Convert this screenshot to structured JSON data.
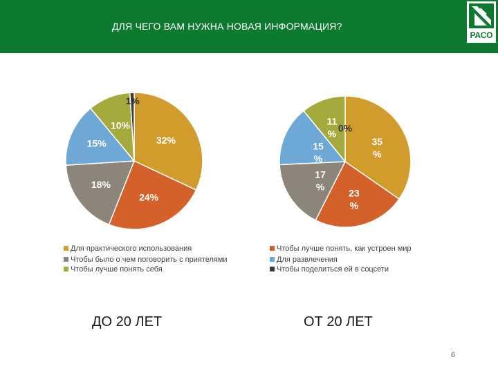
{
  "header": {
    "title": "ДЛЯ ЧЕГО ВАМ НУЖНА НОВАЯ ИНФОРМАЦИЯ?",
    "logo_text": "РАСО",
    "background_color": "#0e7a2f"
  },
  "chart_data": [
    {
      "type": "pie",
      "caption": "ДО 20 ЛЕТ",
      "categories": [
        "Для практического использования",
        "Чтобы лучше понять, как устроен мир",
        "Чтобы было о чем поговорить с приятелями",
        "Для развлечения",
        "Чтобы лучше понять себя",
        "Чтобы поделиться ей в соцсети"
      ],
      "values": [
        32,
        24,
        18,
        15,
        10,
        1
      ],
      "data_labels": [
        "32%",
        "24%",
        "18%",
        "15%",
        "10%",
        "1%"
      ],
      "colors": [
        "#d19c2c",
        "#d4612a",
        "#8c8579",
        "#6ea8d6",
        "#a4aa3b",
        "#3a3a3a"
      ]
    },
    {
      "type": "pie",
      "caption": "ОТ 20 ЛЕТ",
      "categories": [
        "Для практического использования",
        "Чтобы лучше понять, как устроен мир",
        "Чтобы было о чем поговорить с приятелями",
        "Для развлечения",
        "Чтобы лучше понять себя",
        "Чтобы поделиться ей в соцсети"
      ],
      "values": [
        35,
        23,
        17,
        15,
        11,
        0
      ],
      "data_labels": [
        "35 %",
        "23 %",
        "17 %",
        "15 %",
        "11 %",
        "0%"
      ],
      "colors": [
        "#d19c2c",
        "#d4612a",
        "#8c8579",
        "#6ea8d6",
        "#a4aa3b",
        "#3a3a3a"
      ]
    }
  ],
  "legend": {
    "items": [
      "Для практического использования",
      "Чтобы лучше понять, как устроен мир",
      "Чтобы было о чем поговорить с приятелями",
      "Для развлечения",
      "Чтобы лучше понять себя",
      "Чтобы поделиться ей в соцсети"
    ],
    "colors": [
      "#d19c2c",
      "#d4612a",
      "#8c8579",
      "#6ea8d6",
      "#a4aa3b",
      "#3a3a3a"
    ]
  },
  "captions": {
    "left": "ДО 20 ЛЕТ",
    "right": "ОТ 20 ЛЕТ"
  },
  "page_number": "6"
}
